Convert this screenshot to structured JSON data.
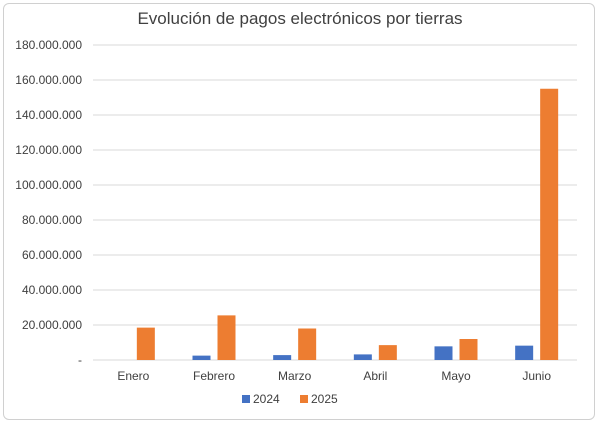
{
  "chart_data": {
    "type": "bar",
    "title": "Evolución de pagos electrónicos por tierras",
    "categories": [
      "Enero",
      "Febrero",
      "Marzo",
      "Abril",
      "Mayo",
      "Junio"
    ],
    "series": [
      {
        "name": "2024",
        "color": "#4472C4",
        "values": [
          0,
          2500000,
          2800000,
          3200000,
          7800000,
          8200000
        ]
      },
      {
        "name": "2025",
        "color": "#ED7D31",
        "values": [
          18500000,
          25500000,
          18000000,
          8500000,
          12000000,
          155000000
        ]
      }
    ],
    "ylim": [
      0,
      180000000
    ],
    "yticks": [
      0,
      20000000,
      40000000,
      60000000,
      80000000,
      100000000,
      120000000,
      140000000,
      160000000,
      180000000
    ],
    "ytick_labels": [
      "-",
      "20.000.000",
      "40.000.000",
      "60.000.000",
      "80.000.000",
      "100.000.000",
      "120.000.000",
      "140.000.000",
      "160.000.000",
      "180.000.000"
    ],
    "grid": true,
    "legend": "bottom",
    "xlabel": "",
    "ylabel": ""
  }
}
